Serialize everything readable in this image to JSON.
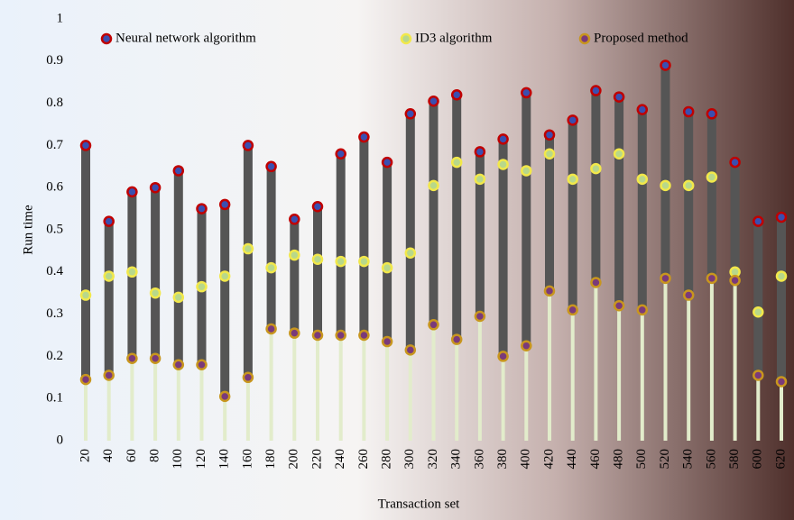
{
  "chart_data": {
    "type": "range-dot",
    "x_label": "Transaction set",
    "y_label": "Run time",
    "categories": [
      "20",
      "40",
      "60",
      "80",
      "100",
      "120",
      "140",
      "160",
      "180",
      "200",
      "220",
      "240",
      "260",
      "280",
      "300",
      "320",
      "340",
      "360",
      "380",
      "400",
      "420",
      "440",
      "460",
      "480",
      "500",
      "520",
      "540",
      "560",
      "580",
      "600",
      "620"
    ],
    "series": [
      {
        "name": "Neural network algorithm",
        "color": "#c00000",
        "inner_color": "#3a4fb0",
        "values": [
          0.7,
          0.52,
          0.59,
          0.6,
          0.64,
          0.55,
          0.56,
          0.7,
          0.65,
          0.525,
          0.555,
          0.68,
          0.72,
          0.66,
          0.775,
          0.805,
          0.82,
          0.685,
          0.715,
          0.825,
          0.725,
          0.76,
          0.83,
          0.815,
          0.785,
          0.89,
          0.78,
          0.775,
          0.66,
          0.52,
          0.53
        ]
      },
      {
        "name": "ID3 algorithm",
        "color": "#f2e84a",
        "inner_color": "#b8d88a",
        "values": [
          0.345,
          0.39,
          0.4,
          0.35,
          0.34,
          0.365,
          0.39,
          0.455,
          0.41,
          0.44,
          0.43,
          0.425,
          0.425,
          0.41,
          0.445,
          0.605,
          0.66,
          0.62,
          0.655,
          0.64,
          0.68,
          0.62,
          0.645,
          0.68,
          0.62,
          0.605,
          0.605,
          0.625,
          0.4,
          0.305,
          0.39
        ]
      },
      {
        "name": "Proposed method",
        "color": "#c8961e",
        "inner_color": "#7a3a7a",
        "values": [
          0.145,
          0.155,
          0.195,
          0.195,
          0.18,
          0.18,
          0.105,
          0.15,
          0.265,
          0.255,
          0.25,
          0.25,
          0.25,
          0.235,
          0.215,
          0.275,
          0.24,
          0.295,
          0.2,
          0.225,
          0.355,
          0.31,
          0.375,
          0.32,
          0.31,
          0.385,
          0.345,
          0.385,
          0.38,
          0.155,
          0.14
        ]
      }
    ],
    "range_color": "#555555",
    "stem_color": "#e2eccb",
    "ylim": [
      0,
      1
    ],
    "yticks": [
      0,
      0.1,
      0.2,
      0.3,
      0.4,
      0.5,
      0.6,
      0.7,
      0.8,
      0.9,
      1
    ]
  }
}
